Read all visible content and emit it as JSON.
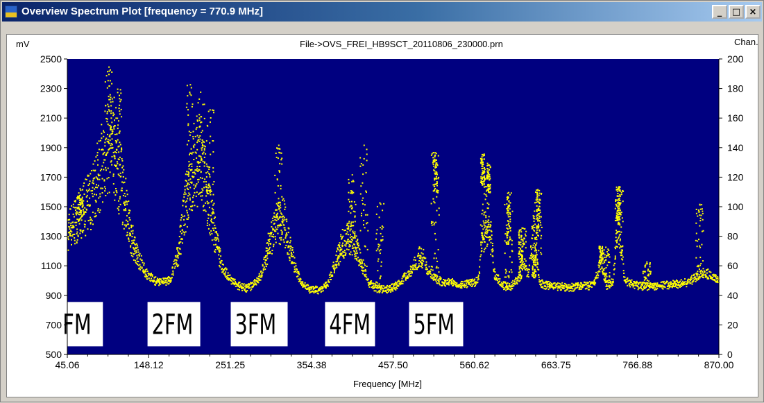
{
  "window": {
    "title": "Overview Spectrum Plot [frequency =  770.9 MHz]",
    "buttons": {
      "minimize": "_",
      "maximize": "□",
      "close": "×"
    }
  },
  "chart_data": {
    "type": "scatter",
    "title": "File->OVS_FREI_HB9SCT_20110806_230000.prn",
    "xlabel": "Frequency [MHz]",
    "ylabel": "mV",
    "y2label": "Chan.",
    "xlim": [
      45.06,
      870.0
    ],
    "ylim": [
      500,
      2500
    ],
    "y2lim": [
      0,
      200
    ],
    "x_ticks": [
      "45.06",
      "148.12",
      "251.25",
      "354.38",
      "457.50",
      "560.62",
      "663.75",
      "766.88",
      "870.00"
    ],
    "y_ticks": [
      "500",
      "700",
      "900",
      "1100",
      "1300",
      "1500",
      "1700",
      "1900",
      "2100",
      "2300",
      "2500"
    ],
    "y2_ticks": [
      "0",
      "20",
      "40",
      "60",
      "80",
      "100",
      "120",
      "140",
      "160",
      "180",
      "200"
    ],
    "background_color": "#000080",
    "point_color": "#ffff00",
    "grid": false,
    "envelope": [
      [
        45,
        1350
      ],
      [
        55,
        1420
      ],
      [
        65,
        1480
      ],
      [
        75,
        1560
      ],
      [
        85,
        1750
      ],
      [
        95,
        1900
      ],
      [
        100,
        1950
      ],
      [
        105,
        1850
      ],
      [
        115,
        1600
      ],
      [
        125,
        1300
      ],
      [
        135,
        1150
      ],
      [
        145,
        1050
      ],
      [
        155,
        1010
      ],
      [
        165,
        1000
      ],
      [
        175,
        1020
      ],
      [
        185,
        1200
      ],
      [
        195,
        1550
      ],
      [
        205,
        1750
      ],
      [
        212,
        1780
      ],
      [
        220,
        1650
      ],
      [
        230,
        1350
      ],
      [
        240,
        1100
      ],
      [
        250,
        1020
      ],
      [
        260,
        980
      ],
      [
        270,
        960
      ],
      [
        280,
        980
      ],
      [
        290,
        1050
      ],
      [
        300,
        1250
      ],
      [
        310,
        1400
      ],
      [
        318,
        1420
      ],
      [
        325,
        1250
      ],
      [
        335,
        1050
      ],
      [
        345,
        970
      ],
      [
        355,
        945
      ],
      [
        365,
        950
      ],
      [
        375,
        1000
      ],
      [
        385,
        1150
      ],
      [
        395,
        1280
      ],
      [
        405,
        1300
      ],
      [
        415,
        1150
      ],
      [
        425,
        1000
      ],
      [
        435,
        960
      ],
      [
        445,
        950
      ],
      [
        455,
        960
      ],
      [
        465,
        990
      ],
      [
        475,
        1050
      ],
      [
        485,
        1120
      ],
      [
        492,
        1180
      ],
      [
        500,
        1100
      ],
      [
        510,
        1020
      ],
      [
        520,
        1000
      ],
      [
        530,
        1000
      ],
      [
        540,
        980
      ],
      [
        550,
        990
      ],
      [
        560,
        1000
      ],
      [
        565,
        1020
      ],
      [
        570,
        1300
      ],
      [
        578,
        1420
      ],
      [
        585,
        1050
      ],
      [
        595,
        980
      ],
      [
        605,
        965
      ],
      [
        615,
        1020
      ],
      [
        620,
        1150
      ],
      [
        628,
        1050
      ],
      [
        635,
        1380
      ],
      [
        642,
        1000
      ],
      [
        650,
        980
      ],
      [
        660,
        975
      ],
      [
        670,
        970
      ],
      [
        680,
        965
      ],
      [
        690,
        970
      ],
      [
        700,
        975
      ],
      [
        710,
        980
      ],
      [
        720,
        1120
      ],
      [
        727,
        980
      ],
      [
        735,
        1000
      ],
      [
        742,
        1440
      ],
      [
        750,
        1010
      ],
      [
        760,
        990
      ],
      [
        770,
        975
      ],
      [
        780,
        975
      ],
      [
        790,
        975
      ],
      [
        800,
        980
      ],
      [
        810,
        985
      ],
      [
        820,
        990
      ],
      [
        830,
        1000
      ],
      [
        840,
        1030
      ],
      [
        850,
        1060
      ],
      [
        860,
        1040
      ],
      [
        870,
        1010
      ]
    ],
    "spikes": [
      {
        "x": 60,
        "y": 1580
      },
      {
        "x": 97,
        "y": 2450
      },
      {
        "x": 108,
        "y": 2300
      },
      {
        "x": 200,
        "y": 2330
      },
      {
        "x": 213,
        "y": 2280
      },
      {
        "x": 225,
        "y": 2160
      },
      {
        "x": 312,
        "y": 1920
      },
      {
        "x": 405,
        "y": 1720
      },
      {
        "x": 420,
        "y": 1920
      },
      {
        "x": 440,
        "y": 1530
      },
      {
        "x": 510,
        "y": 1870
      },
      {
        "x": 572,
        "y": 1860
      },
      {
        "x": 603,
        "y": 1600
      },
      {
        "x": 620,
        "y": 1360
      },
      {
        "x": 640,
        "y": 1620
      },
      {
        "x": 726,
        "y": 1230
      },
      {
        "x": 743,
        "y": 1640
      },
      {
        "x": 778,
        "y": 1130
      },
      {
        "x": 845,
        "y": 1520
      }
    ],
    "dense_bands": [
      {
        "x": 570,
        "ymin": 1650,
        "ymax": 1860
      },
      {
        "x": 578,
        "ymin": 1600,
        "ymax": 1800
      },
      {
        "x": 510,
        "ymin": 1600,
        "ymax": 1880
      },
      {
        "x": 603,
        "ymin": 1250,
        "ymax": 1600
      },
      {
        "x": 618,
        "ymin": 1000,
        "ymax": 1350
      },
      {
        "x": 640,
        "ymin": 1300,
        "ymax": 1620
      },
      {
        "x": 720,
        "ymin": 1120,
        "ymax": 1240
      },
      {
        "x": 742,
        "ymin": 1380,
        "ymax": 1640
      },
      {
        "x": 635,
        "ymin": 1020,
        "ymax": 1180
      }
    ],
    "annotations": [
      {
        "text": "FM",
        "x": 62,
        "y": 705
      },
      {
        "text": "2FM",
        "x": 180,
        "y": 705
      },
      {
        "text": "3FM",
        "x": 288,
        "y": 705
      },
      {
        "text": "4FM",
        "x": 403,
        "y": 705
      },
      {
        "text": "5FM",
        "x": 512,
        "y": 705
      }
    ]
  }
}
